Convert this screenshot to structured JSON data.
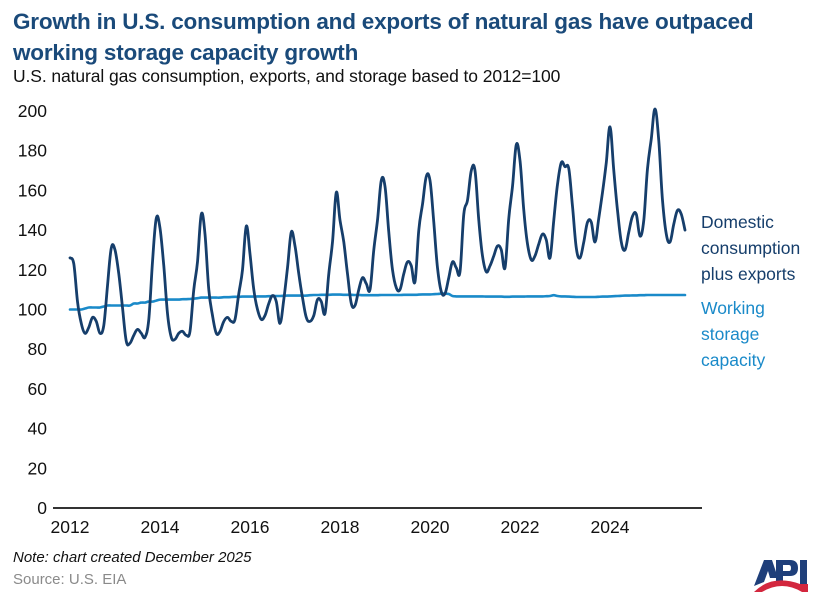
{
  "header": {
    "title": "Growth in U.S. consumption and exports of natural gas have outpaced working storage capacity growth",
    "subtitle": "U.S. natural gas consumption, exports, and storage based to 2012=100"
  },
  "footer": {
    "note": "Note: chart created December 2025",
    "source": "Source: U.S. EIA",
    "logo": "API-logo"
  },
  "colors": {
    "consumption": "#163e6b",
    "storage": "#1a8ac9",
    "title": "#1a4a7a",
    "axis": "#333333"
  },
  "chart_data": {
    "type": "line",
    "title": "Growth in U.S. consumption and exports of natural gas have outpaced working storage capacity growth",
    "subtitle": "U.S. natural gas consumption, exports, and storage based to 2012=100",
    "xlabel": "",
    "ylabel": "",
    "x_start": "2012-01",
    "frequency": "monthly",
    "xlim": [
      2012,
      2025.9
    ],
    "ylim": [
      0,
      200
    ],
    "yticks": [
      0,
      20,
      40,
      60,
      80,
      100,
      120,
      140,
      160,
      180,
      200
    ],
    "ytick_labels": [
      "0",
      "20",
      "40",
      "60",
      "80",
      "100",
      "120",
      "140",
      "160",
      "180",
      "200"
    ],
    "xticks": [
      2012,
      2014,
      2016,
      2018,
      2020,
      2022,
      2024
    ],
    "xtick_labels": [
      "2012",
      "2014",
      "2016",
      "2018",
      "2020",
      "2022",
      "2024"
    ],
    "grid": false,
    "legend_placement": "right (inline labels)",
    "series": [
      {
        "name": "Domestic consumption plus exports",
        "label_lines": [
          "Domestic",
          "consumption",
          "plus exports"
        ],
        "values": [
          126,
          123,
          104,
          93,
          88,
          91,
          96,
          94,
          88,
          92,
          112,
          131,
          130,
          118,
          101,
          84,
          83,
          87,
          90,
          88,
          86,
          95,
          124,
          146,
          141,
          122,
          98,
          86,
          85,
          88,
          89,
          87,
          89,
          110,
          124,
          148,
          138,
          110,
          97,
          88,
          89,
          94,
          96,
          94,
          95,
          108,
          120,
          142,
          128,
          110,
          100,
          95,
          97,
          103,
          107,
          104,
          93,
          105,
          121,
          139,
          132,
          118,
          106,
          96,
          94,
          97,
          105,
          104,
          98,
          118,
          134,
          159,
          145,
          134,
          118,
          103,
          102,
          110,
          116,
          113,
          110,
          130,
          145,
          165,
          162,
          139,
          120,
          111,
          110,
          118,
          124,
          122,
          114,
          140,
          153,
          167,
          165,
          144,
          121,
          109,
          108,
          116,
          124,
          121,
          119,
          148,
          155,
          170,
          170,
          145,
          127,
          119,
          122,
          127,
          132,
          130,
          121,
          146,
          162,
          183,
          175,
          150,
          133,
          125,
          127,
          133,
          138,
          135,
          126,
          145,
          163,
          174,
          172,
          171,
          152,
          131,
          126,
          134,
          144,
          144,
          134,
          146,
          159,
          174,
          192,
          170,
          150,
          134,
          130,
          139,
          147,
          148,
          137,
          145,
          171,
          186,
          201,
          185,
          155,
          138,
          134,
          143,
          150,
          148,
          140
        ]
      },
      {
        "name": "Working storage capacity",
        "label_lines": [
          "Working",
          "storage",
          "capacity"
        ],
        "values": [
          100,
          100,
          100,
          100,
          100.5,
          101,
          101,
          101,
          101,
          101.5,
          102,
          102,
          102,
          102,
          102,
          102,
          102,
          103,
          103,
          103.5,
          103.5,
          104,
          104,
          104.5,
          105,
          105,
          105,
          105,
          105,
          105,
          105.2,
          105.2,
          105.3,
          105.5,
          105.7,
          106,
          106,
          106,
          106,
          106,
          106,
          106.2,
          106.2,
          106.3,
          106.4,
          106.4,
          106.5,
          106.5,
          106.5,
          106.5,
          106.6,
          106.6,
          106.6,
          106.7,
          106.7,
          106.8,
          106.8,
          106.9,
          107,
          107,
          107,
          107,
          107,
          107,
          107.2,
          107.3,
          107.3,
          107.4,
          107.4,
          107.4,
          107.5,
          107.5,
          107.5,
          107.4,
          107.4,
          107.4,
          107.3,
          107.3,
          107.2,
          107.2,
          107.2,
          107.2,
          107.2,
          107.3,
          107.3,
          107.3,
          107.3,
          107.3,
          107.3,
          107.4,
          107.4,
          107.4,
          107.4,
          107.5,
          107.6,
          107.6,
          107.6,
          107.7,
          107.8,
          108,
          108,
          107.8,
          106.8,
          106.6,
          106.6,
          106.6,
          106.6,
          106.6,
          106.6,
          106.6,
          106.6,
          106.5,
          106.5,
          106.5,
          106.5,
          106.5,
          106.4,
          106.4,
          106.5,
          106.5,
          106.5,
          106.5,
          106.6,
          106.6,
          106.6,
          106.6,
          106.6,
          106.7,
          106.8,
          107.2,
          106.8,
          106.6,
          106.6,
          106.5,
          106.4,
          106.3,
          106.3,
          106.3,
          106.3,
          106.3,
          106.3,
          106.4,
          106.5,
          106.5,
          106.6,
          106.7,
          106.8,
          106.9,
          107,
          107,
          107.1,
          107.1,
          107.2,
          107.2,
          107.3,
          107.3,
          107.3,
          107.3,
          107.3,
          107.3,
          107.3,
          107.3,
          107.3,
          107.3,
          107.3
        ]
      }
    ]
  }
}
